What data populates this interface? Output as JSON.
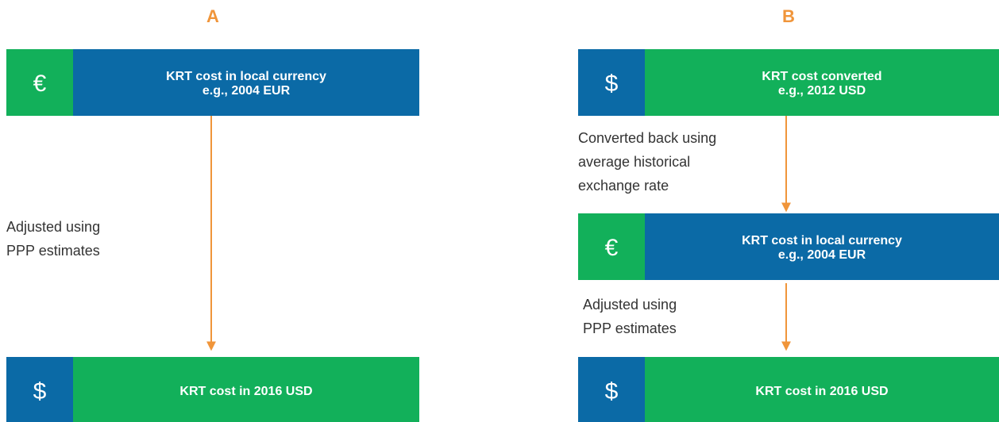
{
  "panels": [
    {
      "label": "A",
      "boxes": [
        {
          "icon": "€",
          "lines": [
            "KRT cost in local currency",
            "e.g., 2004 EUR"
          ]
        },
        {
          "icon": "$",
          "lines": [
            "KRT cost in 2016 USD"
          ]
        }
      ],
      "steps": [
        [
          "Adjusted using",
          "PPP estimates"
        ]
      ]
    },
    {
      "label": "B",
      "boxes": [
        {
          "icon": "$",
          "lines": [
            "KRT cost converted",
            "e.g., 2012 USD"
          ]
        },
        {
          "icon": "€",
          "lines": [
            "KRT cost in local currency",
            "e.g., 2004 EUR"
          ]
        },
        {
          "icon": "$",
          "lines": [
            "KRT cost in 2016 USD"
          ]
        }
      ],
      "steps": [
        [
          "Converted back using",
          "average historical",
          "exchange rate"
        ],
        [
          "Adjusted using",
          "PPP estimates"
        ]
      ]
    }
  ]
}
